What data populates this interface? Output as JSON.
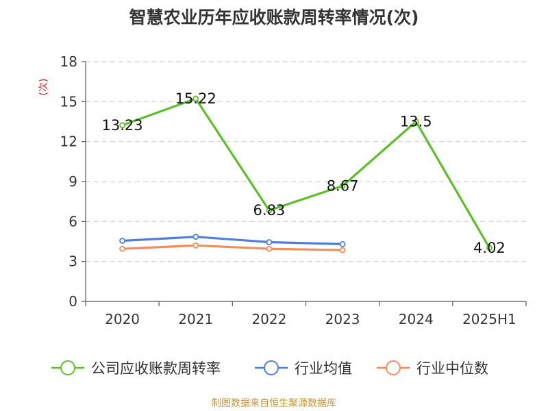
{
  "title": "智慧农业历年应收账款周转率情况(次)",
  "source": "制图数据来自恒生聚源数据库",
  "colors": {
    "main": "#5cbf2a",
    "industry_avg": "#4e7fd8",
    "industry_median": "#f28c5a",
    "source": "#c8933a",
    "ylabel": "#cc2222"
  },
  "chart_data": {
    "type": "line",
    "title": "智慧农业历年应收账款周转率情况(次)",
    "ylabel": "(次)",
    "xlabel": "",
    "categories": [
      "2020",
      "2021",
      "2022",
      "2023",
      "2024",
      "2025H1"
    ],
    "ylim": [
      0,
      18
    ],
    "yticks": [
      0,
      3,
      6,
      9,
      12,
      15,
      18
    ],
    "grid": true,
    "legend_position": "bottom",
    "series": [
      {
        "name": "公司应收账款周转率",
        "values": [
          13.23,
          15.22,
          6.83,
          8.67,
          13.5,
          4.02
        ],
        "labels": [
          "13.23",
          "15.22",
          "6.83",
          "8.67",
          "13.5",
          "4.02"
        ],
        "show_labels": true
      },
      {
        "name": "行业均值",
        "values": [
          4.55,
          4.85,
          4.45,
          4.3,
          null,
          null
        ],
        "show_labels": false
      },
      {
        "name": "行业中位数",
        "values": [
          3.95,
          4.2,
          3.95,
          3.85,
          null,
          null
        ],
        "show_labels": false
      }
    ]
  }
}
